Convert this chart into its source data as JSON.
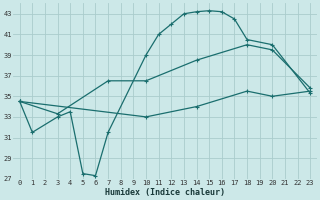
{
  "xlabel": "Humidex (Indice chaleur)",
  "bg_color": "#cce8e8",
  "grid_color": "#aacccc",
  "line_color": "#1a6e6e",
  "xlim": [
    -0.5,
    23.5
  ],
  "ylim": [
    27,
    44
  ],
  "yticks": [
    27,
    29,
    31,
    33,
    35,
    37,
    39,
    41,
    43
  ],
  "xticks": [
    0,
    1,
    2,
    3,
    4,
    5,
    6,
    7,
    8,
    9,
    10,
    11,
    12,
    13,
    14,
    15,
    16,
    17,
    18,
    19,
    20,
    21,
    22,
    23
  ],
  "line1_x": [
    0,
    1,
    3,
    4,
    5,
    6,
    7,
    10,
    11,
    12,
    13,
    14,
    15,
    16,
    17,
    18,
    20,
    23
  ],
  "line1_y": [
    34.5,
    31.5,
    33.0,
    33.5,
    27.5,
    27.3,
    31.5,
    39.0,
    41.0,
    42.0,
    43.0,
    43.2,
    43.3,
    43.2,
    42.5,
    40.5,
    40.0,
    35.3
  ],
  "line2_x": [
    0,
    3,
    7,
    10,
    14,
    18,
    20,
    23
  ],
  "line2_y": [
    34.5,
    33.3,
    36.5,
    36.5,
    38.5,
    40.0,
    39.5,
    35.8
  ],
  "line3_x": [
    0,
    10,
    14,
    18,
    20,
    23
  ],
  "line3_y": [
    34.5,
    33.0,
    34.0,
    35.5,
    35.0,
    35.5
  ]
}
